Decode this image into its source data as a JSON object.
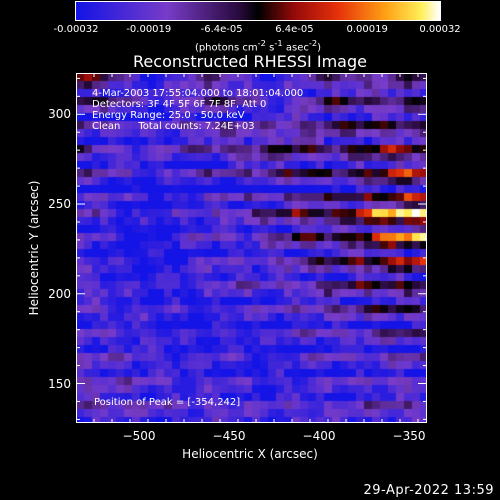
{
  "chart_data": {
    "type": "heatmap",
    "title": "Reconstructed RHESSI Image",
    "xlabel": "Heliocentric X (arcsec)",
    "ylabel": "Heliocentric Y (arcsec)",
    "xlim": [
      -535,
      -340
    ],
    "ylim": [
      128,
      323
    ],
    "x_ticks": [
      -500,
      -450,
      -400,
      -350
    ],
    "y_ticks": [
      150,
      200,
      250,
      300
    ],
    "colorbar": {
      "min": -0.00032,
      "max": 0.00032,
      "ticks": [
        "-0.00032",
        "-0.00019",
        "-6.4e-05",
        "6.4e-05",
        "0.00019",
        "0.00032"
      ],
      "unit_text": "(photons cm",
      "unit_sup1": "-2",
      "unit_mid": " s",
      "unit_sup2": "-1",
      "unit_end": " asec",
      "unit_sup3": "-2",
      "unit_close": ")"
    },
    "annotations": {
      "time_range": "4-Mar-2003 17:55:04.000 to 18:01:04.000",
      "detectors": "Detectors: 3F 4F 5F 6F 7F 8F, Att 0",
      "energy": "Energy Range: 25.0 - 50.0 keV",
      "clean_label": "Clean",
      "total_counts": "Total counts: 7.24E+03",
      "peak_position": "Position of Peak = [-354,242]"
    },
    "peak": {
      "x": -354,
      "y": 242
    },
    "intensity_grid": {
      "rows_top_to_bottom": true,
      "values": [
        [
          0.7,
          0.55,
          0.3,
          0.05,
          0.1,
          0.25,
          0.35,
          0.2,
          0.1,
          0.05,
          0.3,
          0.45,
          0.4,
          0.35,
          0.45,
          0.5
        ],
        [
          0.75,
          0.6,
          0.4,
          0.15,
          0.2,
          0.45,
          0.55,
          0.4,
          0.2,
          0.15,
          0.4,
          0.55,
          0.5,
          0.5,
          0.55,
          0.6
        ],
        [
          0.6,
          0.45,
          0.35,
          0.1,
          0.25,
          0.4,
          0.45,
          0.35,
          0.25,
          0.3,
          0.45,
          0.6,
          0.55,
          0.55,
          0.6,
          0.58
        ],
        [
          0.55,
          0.35,
          0.3,
          0.2,
          0.3,
          0.45,
          0.55,
          0.5,
          0.45,
          0.55,
          0.65,
          0.6,
          0.65,
          0.68,
          0.7,
          0.65
        ],
        [
          0.45,
          0.4,
          0.35,
          0.25,
          0.3,
          0.35,
          0.45,
          0.55,
          0.6,
          0.7,
          0.65,
          0.55,
          0.72,
          0.8,
          0.9,
          0.82
        ],
        [
          0.4,
          0.35,
          0.25,
          0.15,
          0.2,
          0.25,
          0.35,
          0.4,
          0.45,
          0.55,
          0.6,
          0.55,
          0.7,
          0.85,
          1.0,
          0.92
        ],
        [
          0.3,
          0.25,
          0.15,
          0.05,
          0.1,
          0.15,
          0.25,
          0.3,
          0.35,
          0.45,
          0.55,
          0.5,
          0.65,
          0.82,
          0.95,
          0.98
        ],
        [
          0.25,
          0.15,
          0.05,
          0.0,
          0.05,
          0.2,
          0.25,
          0.2,
          0.3,
          0.4,
          0.5,
          0.45,
          0.6,
          0.75,
          0.85,
          0.9
        ],
        [
          0.2,
          0.1,
          0.05,
          0.0,
          0.05,
          0.15,
          0.2,
          0.15,
          0.25,
          0.35,
          0.4,
          0.45,
          0.55,
          0.65,
          0.7,
          0.72
        ],
        [
          0.25,
          0.2,
          0.1,
          0.05,
          0.1,
          0.2,
          0.25,
          0.3,
          0.25,
          0.3,
          0.35,
          0.4,
          0.5,
          0.55,
          0.6,
          0.55
        ],
        [
          0.3,
          0.25,
          0.15,
          0.1,
          0.15,
          0.1,
          0.15,
          0.25,
          0.2,
          0.25,
          0.35,
          0.45,
          0.4,
          0.5,
          0.55,
          0.5
        ],
        [
          0.25,
          0.2,
          0.2,
          0.15,
          0.1,
          0.05,
          0.1,
          0.2,
          0.15,
          0.2,
          0.3,
          0.35,
          0.3,
          0.4,
          0.45,
          0.4
        ],
        [
          0.3,
          0.25,
          0.25,
          0.2,
          0.15,
          0.1,
          0.15,
          0.2,
          0.1,
          0.15,
          0.25,
          0.3,
          0.25,
          0.35,
          0.4,
          0.35
        ],
        [
          0.35,
          0.3,
          0.3,
          0.25,
          0.2,
          0.15,
          0.2,
          0.15,
          0.1,
          0.15,
          0.2,
          0.25,
          0.2,
          0.3,
          0.35,
          0.3
        ],
        [
          0.45,
          0.4,
          0.35,
          0.3,
          0.25,
          0.2,
          0.25,
          0.2,
          0.15,
          0.2,
          0.25,
          0.2,
          0.25,
          0.35,
          0.4,
          0.35
        ],
        [
          0.5,
          0.45,
          0.4,
          0.35,
          0.3,
          0.3,
          0.35,
          0.3,
          0.25,
          0.3,
          0.35,
          0.3,
          0.35,
          0.45,
          0.5,
          0.45
        ]
      ]
    }
  },
  "timestamp": "29-Apr-2022 13:59"
}
